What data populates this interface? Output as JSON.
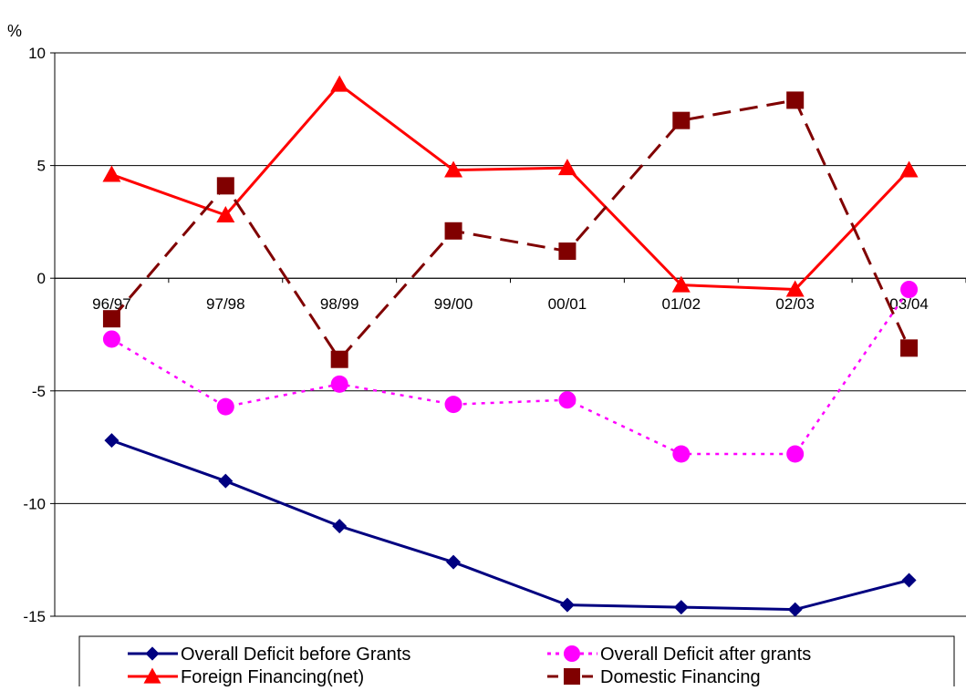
{
  "chart_data": {
    "type": "line",
    "ylabel": "%",
    "categories": [
      "96/97",
      "97/98",
      "98/99",
      "99/00",
      "00/01",
      "01/02",
      "02/03",
      "03/04"
    ],
    "ylim": [
      -15,
      10
    ],
    "yticks": [
      -15,
      -10,
      -5,
      0,
      5,
      10
    ],
    "ytick_labels": [
      "-15",
      "-10",
      "-5",
      "0",
      "5",
      "10"
    ],
    "grid": "horizontal",
    "legend_position": "bottom",
    "series": [
      {
        "name": "Overall Deficit before Grants",
        "values": [
          -7.2,
          -9.0,
          -11.0,
          -12.6,
          -14.5,
          -14.6,
          -14.7,
          -13.4
        ],
        "color": "#000080",
        "marker": "diamond",
        "line_style": "solid"
      },
      {
        "name": "Overall Deficit after grants",
        "values": [
          -2.7,
          -5.7,
          -4.7,
          -5.6,
          -5.4,
          -7.8,
          -7.8,
          -0.5
        ],
        "color": "#ff00ff",
        "marker": "circle",
        "line_style": "dotted"
      },
      {
        "name": "Foreign Financing(net)",
        "values": [
          4.6,
          2.8,
          8.6,
          4.8,
          4.9,
          -0.3,
          -0.5,
          4.8
        ],
        "color": "#ff0000",
        "marker": "triangle",
        "line_style": "solid"
      },
      {
        "name": "Domestic Financing",
        "values": [
          -1.8,
          4.1,
          -3.6,
          2.1,
          1.2,
          7.0,
          7.9,
          -3.1
        ],
        "color": "#800000",
        "marker": "square",
        "line_style": "dashed"
      }
    ]
  }
}
